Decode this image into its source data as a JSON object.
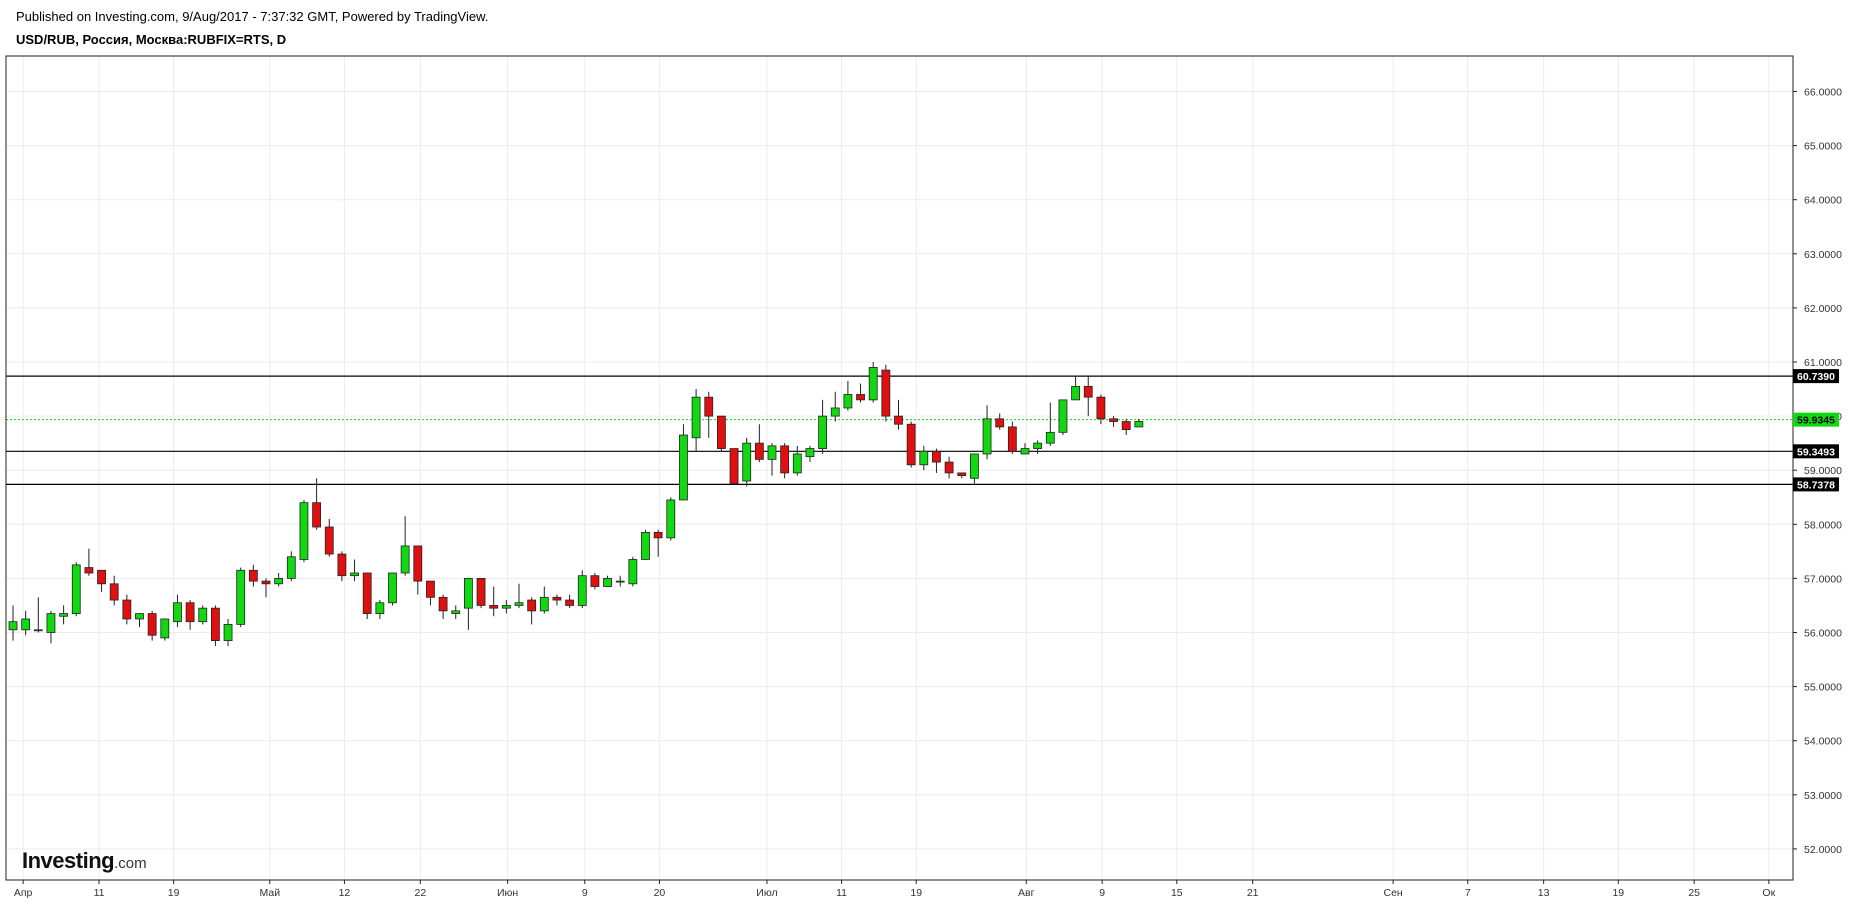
{
  "header": {
    "published": "Published on Investing.com, 9/Aug/2017 - 7:37:32 GMT, Powered by TradingView.",
    "symbol": "USD/RUB, Россия, Москва:RUBFIX=RTS, D"
  },
  "logo": {
    "brand": "Investing",
    "suffix": ".com"
  },
  "chart_data": {
    "type": "candlestick",
    "ylim": [
      51.45,
      66.65
    ],
    "y_ticks": [
      "52.0000",
      "53.0000",
      "54.0000",
      "55.0000",
      "56.0000",
      "57.0000",
      "58.0000",
      "59.0000",
      "60.0000",
      "61.0000",
      "62.0000",
      "63.0000",
      "64.0000",
      "65.0000",
      "66.0000"
    ],
    "x_labels": [
      {
        "label": "Апр",
        "bar": 0.8
      },
      {
        "label": "11",
        "bar": 6.8
      },
      {
        "label": "19",
        "bar": 12.7
      },
      {
        "label": "Май",
        "bar": 20.3
      },
      {
        "label": "12",
        "bar": 26.2
      },
      {
        "label": "22",
        "bar": 32.2
      },
      {
        "label": "Июн",
        "bar": 39.1
      },
      {
        "label": "9",
        "bar": 45.2
      },
      {
        "label": "20",
        "bar": 51.1
      },
      {
        "label": "Июл",
        "bar": 59.6
      },
      {
        "label": "11",
        "bar": 65.5
      },
      {
        "label": "19",
        "bar": 71.4
      },
      {
        "label": "Авг",
        "bar": 80.1
      },
      {
        "label": "9",
        "bar": 86.1
      },
      {
        "label": "15",
        "bar": 92.0
      },
      {
        "label": "21",
        "bar": 98.0
      },
      {
        "label": "Сен",
        "bar": 109.1
      },
      {
        "label": "7",
        "bar": 115.0
      },
      {
        "label": "13",
        "bar": 121.0
      },
      {
        "label": "19",
        "bar": 126.9
      },
      {
        "label": "25",
        "bar": 132.9
      },
      {
        "label": "Ок",
        "bar": 138.8
      }
    ],
    "candles": [
      [
        56.05,
        56.2,
        56.5,
        55.85
      ],
      [
        56.05,
        56.25,
        56.4,
        55.95
      ],
      [
        56.05,
        56.05,
        56.65,
        56.0
      ],
      [
        56.0,
        56.35,
        56.4,
        55.8
      ],
      [
        56.3,
        56.35,
        56.5,
        56.15
      ],
      [
        56.35,
        57.25,
        57.3,
        56.3
      ],
      [
        57.2,
        57.1,
        57.55,
        57.05
      ],
      [
        57.15,
        56.9,
        57.15,
        56.75
      ],
      [
        56.9,
        56.6,
        57.05,
        56.5
      ],
      [
        56.6,
        56.25,
        56.7,
        56.15
      ],
      [
        56.25,
        56.35,
        56.35,
        56.1
      ],
      [
        56.35,
        55.95,
        56.4,
        55.85
      ],
      [
        55.9,
        56.25,
        56.25,
        55.85
      ],
      [
        56.2,
        56.55,
        56.7,
        56.1
      ],
      [
        56.55,
        56.2,
        56.6,
        56.05
      ],
      [
        56.2,
        56.45,
        56.5,
        56.15
      ],
      [
        56.45,
        55.85,
        56.5,
        55.75
      ],
      [
        55.85,
        56.15,
        56.25,
        55.75
      ],
      [
        56.15,
        57.15,
        57.2,
        56.1
      ],
      [
        57.15,
        56.95,
        57.25,
        56.85
      ],
      [
        56.95,
        56.9,
        57.0,
        56.65
      ],
      [
        56.9,
        57.0,
        57.1,
        56.85
      ],
      [
        57.0,
        57.4,
        57.5,
        56.95
      ],
      [
        57.35,
        58.4,
        58.45,
        57.3
      ],
      [
        58.4,
        57.95,
        58.85,
        57.9
      ],
      [
        57.95,
        57.45,
        58.1,
        57.4
      ],
      [
        57.45,
        57.05,
        57.5,
        56.95
      ],
      [
        57.05,
        57.1,
        57.35,
        56.95
      ],
      [
        57.1,
        56.35,
        57.1,
        56.25
      ],
      [
        56.35,
        56.55,
        56.6,
        56.25
      ],
      [
        56.55,
        57.1,
        57.1,
        56.5
      ],
      [
        57.1,
        57.6,
        58.15,
        57.05
      ],
      [
        57.6,
        56.95,
        57.6,
        56.7
      ],
      [
        56.95,
        56.65,
        56.95,
        56.5
      ],
      [
        56.65,
        56.4,
        56.7,
        56.25
      ],
      [
        56.35,
        56.4,
        56.5,
        56.25
      ],
      [
        56.45,
        57.0,
        57.0,
        56.05
      ],
      [
        57.0,
        56.5,
        57.0,
        56.45
      ],
      [
        56.5,
        56.45,
        56.85,
        56.3
      ],
      [
        56.45,
        56.5,
        56.6,
        56.35
      ],
      [
        56.5,
        56.55,
        56.9,
        56.45
      ],
      [
        56.6,
        56.4,
        56.65,
        56.15
      ],
      [
        56.4,
        56.65,
        56.85,
        56.35
      ],
      [
        56.65,
        56.6,
        56.7,
        56.5
      ],
      [
        56.6,
        56.5,
        56.7,
        56.45
      ],
      [
        56.5,
        57.05,
        57.15,
        56.45
      ],
      [
        57.05,
        56.85,
        57.1,
        56.8
      ],
      [
        56.85,
        57.0,
        57.05,
        56.85
      ],
      [
        56.95,
        56.95,
        57.05,
        56.85
      ],
      [
        56.9,
        57.35,
        57.4,
        56.85
      ],
      [
        57.35,
        57.85,
        57.9,
        57.35
      ],
      [
        57.85,
        57.75,
        57.9,
        57.4
      ],
      [
        57.75,
        58.45,
        58.5,
        57.7
      ],
      [
        58.45,
        59.65,
        59.85,
        58.45
      ],
      [
        59.6,
        60.35,
        60.5,
        59.35
      ],
      [
        60.35,
        60.0,
        60.45,
        59.6
      ],
      [
        60.0,
        59.4,
        60.0,
        59.35
      ],
      [
        59.4,
        58.75,
        59.4,
        58.75
      ],
      [
        58.8,
        59.5,
        59.6,
        58.7
      ],
      [
        59.5,
        59.2,
        59.85,
        59.15
      ],
      [
        59.2,
        59.45,
        59.5,
        58.9
      ],
      [
        59.45,
        58.95,
        59.5,
        58.85
      ],
      [
        58.95,
        59.3,
        59.45,
        58.9
      ],
      [
        59.25,
        59.4,
        59.45,
        59.15
      ],
      [
        59.4,
        60.0,
        60.3,
        59.3
      ],
      [
        60.0,
        60.15,
        60.45,
        59.9
      ],
      [
        60.15,
        60.4,
        60.65,
        60.1
      ],
      [
        60.4,
        60.3,
        60.6,
        60.25
      ],
      [
        60.3,
        60.9,
        61.0,
        60.25
      ],
      [
        60.85,
        60.0,
        60.95,
        59.9
      ],
      [
        60.0,
        59.85,
        60.3,
        59.75
      ],
      [
        59.85,
        59.1,
        59.9,
        59.05
      ],
      [
        59.1,
        59.35,
        59.45,
        59.0
      ],
      [
        59.35,
        59.15,
        59.4,
        58.95
      ],
      [
        59.15,
        58.95,
        59.25,
        58.85
      ],
      [
        58.95,
        58.9,
        58.95,
        58.85
      ],
      [
        58.85,
        59.3,
        59.3,
        58.75
      ],
      [
        59.3,
        59.95,
        60.2,
        59.2
      ],
      [
        59.95,
        59.8,
        60.05,
        59.75
      ],
      [
        59.8,
        59.35,
        59.9,
        59.3
      ],
      [
        59.3,
        59.4,
        59.5,
        59.3
      ],
      [
        59.4,
        59.5,
        59.55,
        59.3
      ],
      [
        59.5,
        59.7,
        60.25,
        59.45
      ],
      [
        59.7,
        60.3,
        60.3,
        59.65
      ],
      [
        60.3,
        60.55,
        60.75,
        60.3
      ],
      [
        60.55,
        60.35,
        60.75,
        60.0
      ],
      [
        60.35,
        59.95,
        60.4,
        59.85
      ],
      [
        59.95,
        59.9,
        60.0,
        59.8
      ],
      [
        59.9,
        59.75,
        59.95,
        59.65
      ],
      [
        59.8,
        59.9,
        59.95,
        59.8
      ]
    ],
    "levels": [
      {
        "value": 60.739,
        "label": "60.7390"
      },
      {
        "value": 59.3493,
        "label": "59.3493"
      },
      {
        "value": 58.7378,
        "label": "58.7378"
      }
    ],
    "last_price": {
      "value": 59.9345,
      "label": "59.9345"
    },
    "colors": {
      "up": "#11d811",
      "down": "#e01010",
      "last": "#11d811",
      "grid": "#ececec",
      "level": "#000000"
    }
  }
}
